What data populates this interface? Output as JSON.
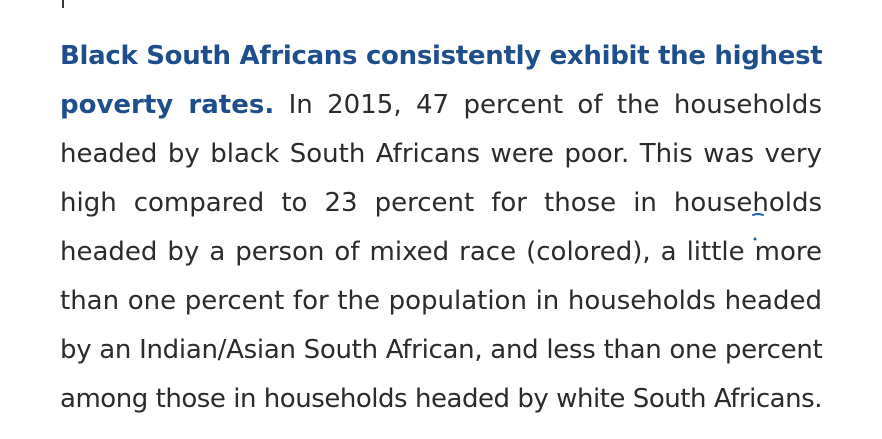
{
  "paragraph": {
    "lead": "Black South Africans consistently exhibit the highest poverty rates.",
    "lines": [
      {
        "lead": "Black South Africans consistently exhibit the highest",
        "text": ""
      },
      {
        "lead": "poverty rates.",
        "text": " In 2015, 47 percent of the households"
      },
      {
        "lead": "",
        "text": "headed by black South Africans were poor. This was very"
      },
      {
        "lead": "",
        "text": "high compared to 23 percent for those in households"
      },
      {
        "lead": "",
        "text": "headed by a person of mixed race (colored), a little more"
      },
      {
        "lead": "",
        "text": "than one percent for the population in households headed"
      },
      {
        "lead": "",
        "text": "by an Indian/Asian South African, and less than one percent"
      },
      {
        "lead": "",
        "text": "among those in households headed by white South Africans."
      }
    ]
  },
  "colors": {
    "lead": "#1f4e8c",
    "body": "#2b2b2b",
    "pen_mark": "#1f5fbf",
    "background": "#ffffff"
  }
}
